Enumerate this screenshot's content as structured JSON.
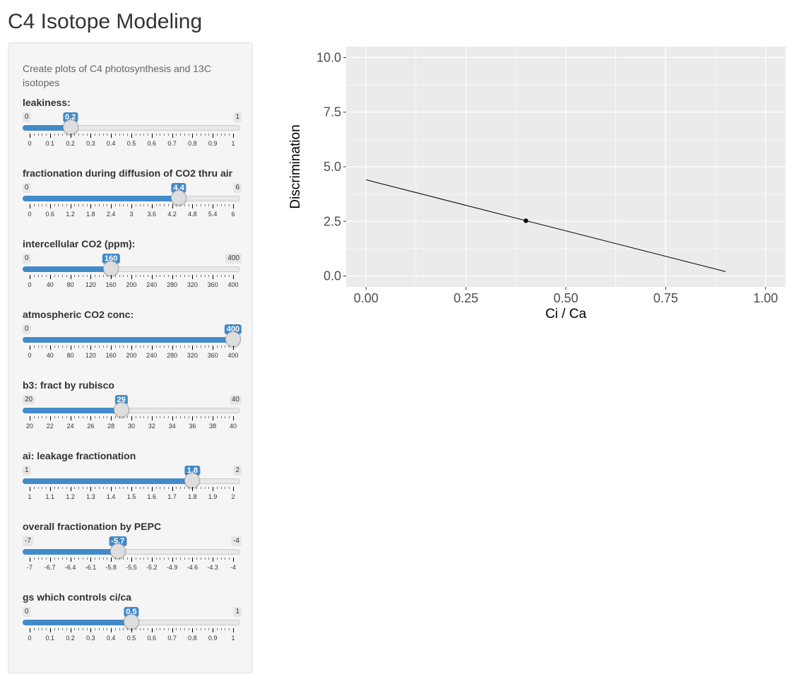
{
  "page": {
    "title": "C4 Isotope Modeling"
  },
  "sidebar": {
    "description": "Create plots of C4 photosynthesis and 13C isotopes",
    "sliders": [
      {
        "label": "leakiness:",
        "min": 0,
        "max": 1,
        "value": 0.2,
        "min_label": "0",
        "max_label": "1",
        "value_label": "0.2",
        "ticks": [
          "0",
          "0.1",
          "0.2",
          "0.3",
          "0.4",
          "0.5",
          "0.6",
          "0.7",
          "0.8",
          "0.9",
          "1"
        ]
      },
      {
        "label": "fractionation during diffusion of CO2 thru air",
        "min": 0,
        "max": 6,
        "value": 4.4,
        "min_label": "0",
        "max_label": "6",
        "value_label": "4.4",
        "ticks": [
          "0",
          "0.6",
          "1.2",
          "1.8",
          "2.4",
          "3",
          "3.6",
          "4.2",
          "4.8",
          "5.4",
          "6"
        ]
      },
      {
        "label": "intercellular CO2 (ppm):",
        "min": 0,
        "max": 400,
        "value": 160,
        "min_label": "0",
        "max_label": "400",
        "value_label": "160",
        "ticks": [
          "0",
          "40",
          "80",
          "120",
          "160",
          "200",
          "240",
          "280",
          "320",
          "360",
          "400"
        ]
      },
      {
        "label": "atmospheric CO2 conc:",
        "min": 0,
        "max": 400,
        "value": 400,
        "min_label": "0",
        "max_label": "400",
        "value_label": "400",
        "ticks": [
          "0",
          "40",
          "80",
          "120",
          "160",
          "200",
          "240",
          "280",
          "320",
          "360",
          "400"
        ]
      },
      {
        "label": "b3: fract by rubisco",
        "min": 20,
        "max": 40,
        "value": 29,
        "min_label": "20",
        "max_label": "40",
        "value_label": "29",
        "ticks": [
          "20",
          "22",
          "24",
          "26",
          "28",
          "30",
          "32",
          "34",
          "36",
          "38",
          "40"
        ]
      },
      {
        "label": "ai: leakage fractionation",
        "min": 1,
        "max": 2,
        "value": 1.8,
        "min_label": "1",
        "max_label": "2",
        "value_label": "1.8",
        "ticks": [
          "1",
          "1.1",
          "1.2",
          "1.3",
          "1.4",
          "1.5",
          "1.6",
          "1.7",
          "1.8",
          "1.9",
          "2"
        ]
      },
      {
        "label": "overall fractionation by PEPC",
        "min": -7,
        "max": -4,
        "value": -5.7,
        "min_label": "-7",
        "max_label": "-4",
        "value_label": "-5.7",
        "ticks": [
          "-7",
          "-6.7",
          "-6.4",
          "-6.1",
          "-5.8",
          "-5.5",
          "-5.2",
          "-4.9",
          "-4.6",
          "-4.3",
          "-4"
        ]
      },
      {
        "label": "gs which controls ci/ca",
        "min": 0,
        "max": 1,
        "value": 0.5,
        "min_label": "0",
        "max_label": "1",
        "value_label": "0.5",
        "ticks": [
          "0",
          "0.1",
          "0.2",
          "0.3",
          "0.4",
          "0.5",
          "0.6",
          "0.7",
          "0.8",
          "0.9",
          "1"
        ]
      }
    ]
  },
  "chart_data": {
    "type": "line",
    "xlabel": "Ci / Ca",
    "ylabel": "Discrimination",
    "xlim": [
      -0.05,
      1.05
    ],
    "ylim": [
      -0.5,
      10.5
    ],
    "xticks": [
      0,
      0.25,
      0.5,
      0.75,
      1
    ],
    "xtick_labels": [
      "0.00",
      "0.25",
      "0.50",
      "0.75",
      "1.00"
    ],
    "yticks": [
      0,
      2.5,
      5,
      7.5,
      10
    ],
    "ytick_labels": [
      "0.0",
      "2.5",
      "5.0",
      "7.5",
      "10.0"
    ],
    "series": [
      {
        "x": [
          0,
          0.9
        ],
        "y": [
          4.4,
          0.2
        ]
      }
    ],
    "points": [
      {
        "x": 0.4,
        "y": 2.53
      }
    ],
    "grid": true,
    "colors": {
      "panel": "#ebebeb",
      "grid": "#ffffff",
      "line": "#000000"
    }
  }
}
